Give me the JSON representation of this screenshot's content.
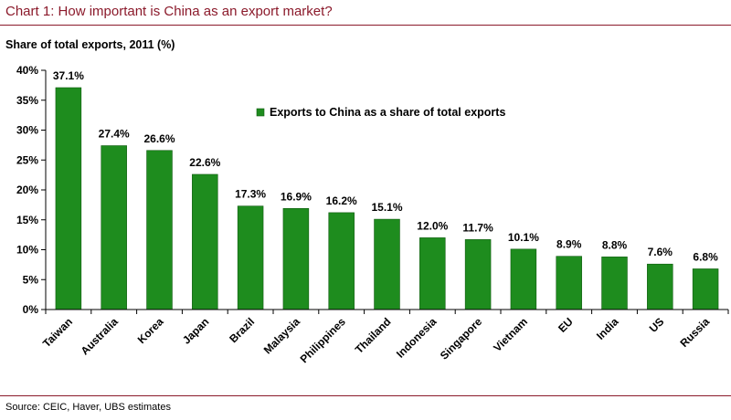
{
  "header": {
    "title": "Chart 1: How important is China as an export market?"
  },
  "footer": {
    "source": "Source: CEIC, Haver, UBS estimates"
  },
  "colors": {
    "bar": "#1e8c1e",
    "bar_edge": "#0f5a0f",
    "rule": "#8b1a2b",
    "title": "#8b1a2b"
  },
  "chart_data": {
    "type": "bar",
    "ylabel": "Share of total exports, 2011 (%)",
    "xlabel": "",
    "ylim": [
      0,
      40
    ],
    "yticks": [
      "0%",
      "5%",
      "10%",
      "15%",
      "20%",
      "25%",
      "30%",
      "35%",
      "40%"
    ],
    "grid": false,
    "legend_position": "top-center",
    "categories": [
      "Taiwan",
      "Australia",
      "Korea",
      "Japan",
      "Brazil",
      "Malaysia",
      "Philippines",
      "Thailand",
      "Indonesia",
      "Singapore",
      "Vietnam",
      "EU",
      "India",
      "US",
      "Russia"
    ],
    "series": [
      {
        "name": "Exports to China as a share of total exports",
        "values": [
          37.1,
          27.4,
          26.6,
          22.6,
          17.3,
          16.9,
          16.2,
          15.1,
          12.0,
          11.7,
          10.1,
          8.9,
          8.8,
          7.6,
          6.8
        ],
        "labels": [
          "37.1%",
          "27.4%",
          "26.6%",
          "22.6%",
          "17.3%",
          "16.9%",
          "16.2%",
          "15.1%",
          "12.0%",
          "11.7%",
          "10.1%",
          "8.9%",
          "8.8%",
          "7.6%",
          "6.8%"
        ]
      }
    ]
  }
}
